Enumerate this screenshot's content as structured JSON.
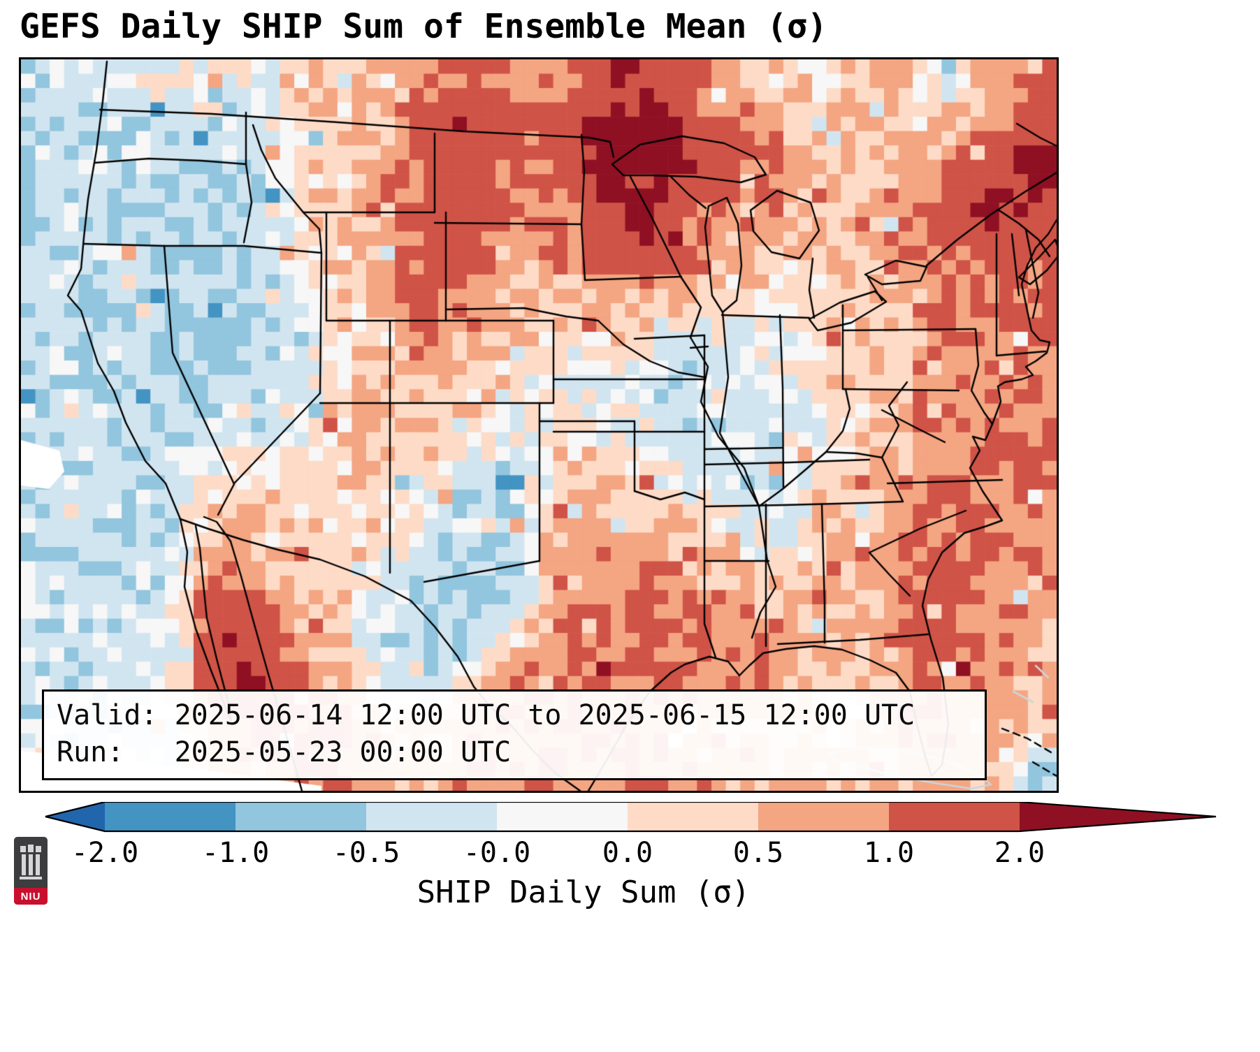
{
  "title": "GEFS Daily SHIP Sum of Ensemble Mean (σ)",
  "info_box": {
    "line1": "Valid: 2025-06-14 12:00 UTC to 2025-06-15 12:00 UTC",
    "line2": "Run:   2025-05-23 00:00 UTC"
  },
  "colorbar": {
    "label": "SHIP Daily Sum (σ)",
    "ticks": [
      "-2.0",
      "-1.0",
      "-0.5",
      "-0.0",
      "0.0",
      "0.5",
      "1.0",
      "2.0"
    ],
    "extend": "both"
  },
  "logo": {
    "text": "NIU"
  },
  "chart_data": {
    "type": "heatmap",
    "title": "GEFS Daily SHIP Sum of Ensemble Mean (σ)",
    "variable": "SHIP Daily Sum (σ)",
    "model": "GEFS",
    "valid": "2025-06-14 12:00 UTC to 2025-06-15 12:00 UTC",
    "run": "2025-05-23 00:00 UTC",
    "region": "Continental United States with southern Canada, northern Mexico, Gulf of Mexico and western Atlantic",
    "legend_position": "bottom",
    "colorbar": {
      "boundaries": [
        -2.0,
        -1.0,
        -0.5,
        -0.0,
        0.0,
        0.5,
        1.0,
        2.0
      ],
      "tick_labels": [
        "-2.0",
        "-1.0",
        "-0.5",
        "-0.0",
        "0.0",
        "0.5",
        "1.0",
        "2.0"
      ],
      "extend": "both"
    },
    "colors": {
      "under": "#2166ac",
      "segments": [
        "#4393c3",
        "#92c5de",
        "#d1e5f0",
        "#f7f7f7",
        "#fddbc7",
        "#f4a582",
        "#d05347"
      ],
      "over": "#8f1023",
      "coastline": "#000000",
      "secondary_coastline": "#cdd5d9",
      "background": "#ffffff"
    },
    "grid": {
      "note": "Coarse sigma-unit field (west-to-east columns, north-to-south rows); rendered as upsampled pixel mosaic. Maxima over Upper Midwest / Great Lakes, Northeast coast and NW Mexico; minima over Interior West and central Texas.",
      "cols": 24,
      "rows": 17,
      "values": [
        [
          -0.3,
          -0.3,
          -0.25,
          0.15,
          0.2,
          0.1,
          0.3,
          0.5,
          0.6,
          0.9,
          1.2,
          0.8,
          1.0,
          1.4,
          1.9,
          1.2,
          0.7,
          0.4,
          0.3,
          0.5,
          0.5,
          -0.3,
          0.6,
          1.3
        ],
        [
          -0.3,
          -0.35,
          -0.3,
          -0.4,
          -0.35,
          -0.3,
          0.2,
          0.4,
          0.7,
          1.3,
          1.7,
          1.2,
          1.5,
          2.3,
          2.4,
          1.5,
          1.0,
          0.6,
          0.4,
          0.5,
          0.2,
          0.5,
          1.0,
          1.7
        ],
        [
          -0.35,
          -0.4,
          -0.35,
          -0.45,
          -0.4,
          -0.35,
          0.3,
          0.5,
          0.8,
          1.2,
          1.5,
          1.0,
          1.3,
          2.4,
          2.2,
          2.3,
          1.2,
          1.0,
          0.5,
          0.4,
          0.6,
          0.8,
          1.6,
          2.4
        ],
        [
          -0.3,
          -0.45,
          -0.4,
          -0.5,
          -0.45,
          -0.4,
          0.2,
          0.5,
          0.9,
          1.4,
          1.1,
          0.8,
          1.0,
          1.7,
          2.4,
          1.4,
          0.9,
          0.7,
          0.5,
          0.6,
          0.9,
          1.2,
          2.3,
          1.6
        ],
        [
          -0.35,
          -0.4,
          -0.35,
          -0.45,
          -0.5,
          -0.4,
          0.1,
          0.4,
          0.8,
          1.5,
          1.2,
          0.6,
          0.8,
          1.2,
          1.6,
          1.0,
          0.6,
          0.4,
          0.4,
          0.5,
          0.8,
          1.1,
          1.4,
          1.1
        ],
        [
          -0.3,
          -0.4,
          -0.45,
          -0.5,
          -0.45,
          -0.35,
          0.1,
          0.3,
          0.7,
          1.3,
          0.9,
          0.5,
          0.6,
          0.8,
          0.6,
          0.5,
          0.3,
          0.2,
          0.3,
          0.4,
          0.7,
          0.9,
          1.1,
          1.2
        ],
        [
          -0.35,
          -0.45,
          -0.4,
          -0.55,
          -0.9,
          -0.5,
          -0.3,
          0.2,
          0.6,
          1.1,
          0.6,
          0.3,
          0.2,
          0.3,
          0.2,
          -0.2,
          0.1,
          -0.2,
          0.2,
          0.3,
          0.5,
          0.8,
          1.0,
          1.1
        ],
        [
          -0.3,
          -0.4,
          -0.45,
          -0.5,
          -0.45,
          -0.4,
          -0.2,
          0.3,
          0.6,
          0.6,
          0.4,
          0.1,
          0.1,
          -0.2,
          -0.3,
          -0.2,
          -0.25,
          -0.2,
          0.1,
          0.4,
          0.7,
          0.9,
          1.0,
          1.0
        ],
        [
          -0.3,
          -0.35,
          -0.3,
          -0.4,
          -0.35,
          -0.3,
          0.1,
          0.3,
          0.5,
          0.5,
          0.3,
          -0.2,
          0.2,
          0.1,
          -0.2,
          -0.3,
          -0.3,
          -0.25,
          -0.1,
          0.3,
          0.6,
          0.9,
          1.1,
          1.0
        ],
        [
          -0.3,
          -0.3,
          -0.35,
          -0.3,
          0.1,
          0.2,
          0.3,
          0.4,
          0.5,
          0.3,
          -0.2,
          -0.3,
          0.4,
          0.4,
          0.2,
          -0.2,
          -0.3,
          -0.2,
          0.2,
          0.5,
          0.8,
          1.0,
          1.0,
          0.9
        ],
        [
          -0.3,
          -0.3,
          -0.3,
          -0.25,
          0.4,
          0.5,
          0.4,
          0.3,
          0.2,
          -0.3,
          -0.4,
          -0.3,
          0.5,
          0.6,
          0.5,
          0.3,
          -0.2,
          -0.3,
          0.4,
          0.6,
          0.9,
          1.1,
          1.0,
          0.9
        ],
        [
          -0.25,
          -0.3,
          -0.3,
          -0.2,
          0.8,
          0.6,
          0.5,
          0.3,
          0.1,
          -0.35,
          -0.45,
          -0.3,
          0.6,
          0.8,
          0.9,
          0.7,
          0.3,
          -0.2,
          0.6,
          0.7,
          1.0,
          1.2,
          1.1,
          0.8
        ],
        [
          -0.25,
          -0.25,
          -0.3,
          -0.2,
          1.3,
          0.9,
          0.6,
          0.3,
          -0.2,
          -0.4,
          -0.5,
          -0.2,
          0.8,
          1.0,
          1.1,
          0.9,
          0.7,
          0.5,
          0.7,
          0.5,
          1.1,
          1.3,
          1.0,
          0.8
        ],
        [
          -0.3,
          -0.25,
          -0.25,
          -0.15,
          1.9,
          1.4,
          0.8,
          0.4,
          -0.3,
          -0.45,
          -0.4,
          0.3,
          1.0,
          1.1,
          1.0,
          1.0,
          0.9,
          0.8,
          0.6,
          0.3,
          1.0,
          1.2,
          0.9,
          0.7
        ],
        [
          -0.25,
          -0.25,
          -0.2,
          -0.1,
          1.5,
          2.4,
          1.0,
          0.6,
          -0.2,
          -0.3,
          0.4,
          0.9,
          1.1,
          1.0,
          1.1,
          0.9,
          0.8,
          0.7,
          0.4,
          0.2,
          0.8,
          1.0,
          0.8,
          0.6
        ],
        [
          -0.25,
          -0.2,
          -0.2,
          -0.1,
          0.9,
          1.2,
          1.1,
          0.9,
          0.4,
          0.5,
          0.8,
          1.0,
          0.9,
          0.9,
          1.0,
          0.8,
          0.7,
          0.6,
          0.3,
          0.4,
          0.7,
          0.9,
          0.7,
          0.5
        ],
        [
          -0.2,
          -0.2,
          -0.15,
          -0.1,
          0.6,
          0.8,
          0.9,
          1.0,
          0.7,
          0.7,
          0.9,
          1.0,
          0.8,
          0.8,
          0.9,
          0.9,
          0.6,
          0.5,
          0.4,
          0.5,
          0.6,
          0.8,
          0.6,
          -0.5
        ]
      ]
    }
  }
}
